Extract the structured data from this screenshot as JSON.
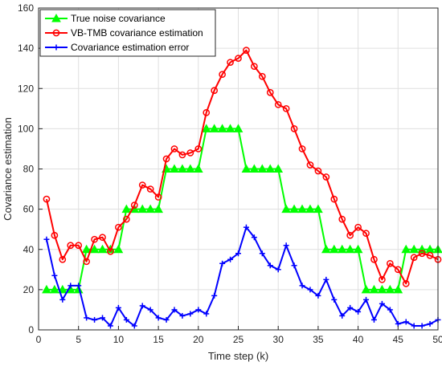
{
  "chart_data": {
    "type": "line",
    "xlabel": "Time step (k)",
    "ylabel": "Covariance estimation",
    "xlim": [
      0,
      50
    ],
    "ylim": [
      0,
      160
    ],
    "xticks": [
      0,
      5,
      10,
      15,
      20,
      25,
      30,
      35,
      40,
      45,
      50
    ],
    "yticks": [
      0,
      20,
      40,
      60,
      80,
      100,
      120,
      140,
      160
    ],
    "grid": true,
    "legend_position": "top-left",
    "x": [
      1,
      2,
      3,
      4,
      5,
      6,
      7,
      8,
      9,
      10,
      11,
      12,
      13,
      14,
      15,
      16,
      17,
      18,
      19,
      20,
      21,
      22,
      23,
      24,
      25,
      26,
      27,
      28,
      29,
      30,
      31,
      32,
      33,
      34,
      35,
      36,
      37,
      38,
      39,
      40,
      41,
      42,
      43,
      44,
      45,
      46,
      47,
      48,
      49,
      50
    ],
    "series": [
      {
        "name": "True noise covariance",
        "color": "#00ff00",
        "marker": "triangle",
        "values": [
          20,
          20,
          20,
          20,
          20,
          40,
          40,
          40,
          40,
          40,
          60,
          60,
          60,
          60,
          60,
          80,
          80,
          80,
          80,
          80,
          100,
          100,
          100,
          100,
          100,
          80,
          80,
          80,
          80,
          80,
          60,
          60,
          60,
          60,
          60,
          40,
          40,
          40,
          40,
          40,
          20,
          20,
          20,
          20,
          20,
          40,
          40,
          40,
          40,
          40
        ]
      },
      {
        "name": "VB-TMB covariance estimation",
        "color": "#ff0000",
        "marker": "circle",
        "values": [
          65,
          47,
          35,
          42,
          42,
          34,
          45,
          46,
          39,
          51,
          55,
          62,
          72,
          70,
          66,
          85,
          90,
          87,
          88,
          90,
          108,
          119,
          127,
          133,
          135,
          139,
          131,
          126,
          118,
          112,
          110,
          100,
          90,
          82,
          79,
          76,
          65,
          55,
          47,
          51,
          48,
          35,
          25,
          33,
          30,
          23,
          36,
          38,
          37,
          35
        ]
      },
      {
        "name": "Covariance estimation error",
        "color": "#0000ff",
        "marker": "plus",
        "values": [
          45,
          27,
          15,
          22,
          22,
          6,
          5,
          6,
          2,
          11,
          5,
          2,
          12,
          10,
          6,
          5,
          10,
          7,
          8,
          10,
          8,
          17,
          33,
          35,
          38,
          51,
          46,
          38,
          32,
          30,
          42,
          32,
          22,
          20,
          17,
          25,
          15,
          7,
          11,
          9,
          15,
          5,
          13,
          10,
          3,
          4,
          2,
          2,
          3,
          5
        ]
      }
    ]
  }
}
